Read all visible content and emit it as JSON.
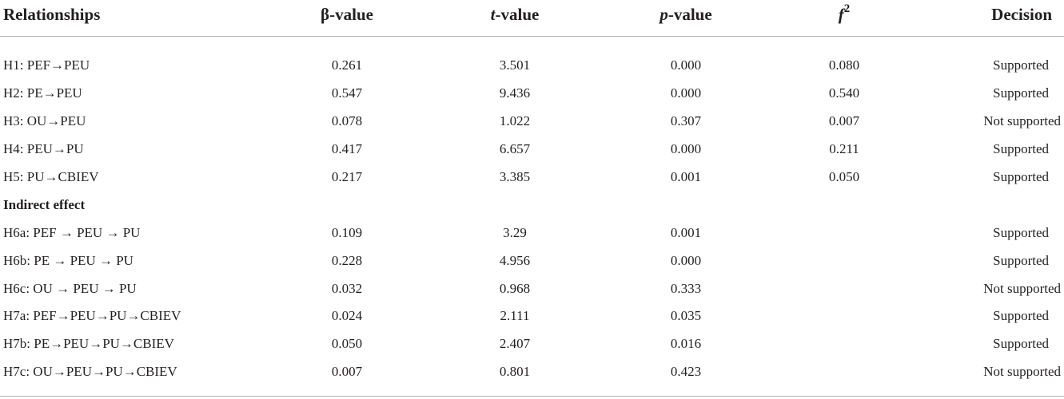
{
  "table": {
    "headers": {
      "relationships": "Relationships",
      "beta": "β-value",
      "t_prefix": "t",
      "t_suffix": "-value",
      "p_prefix": "p",
      "p_suffix": "-value",
      "f_base": "f",
      "f_sup": "2",
      "decision": "Decision"
    },
    "direct_rows": [
      {
        "rel": "H1: PEF→PEU",
        "beta": "0.261",
        "t": "3.501",
        "p": "0.000",
        "f2": "0.080",
        "decision": "Supported"
      },
      {
        "rel": "H2: PE→PEU",
        "beta": "0.547",
        "t": "9.436",
        "p": "0.000",
        "f2": "0.540",
        "decision": "Supported"
      },
      {
        "rel": "H3: OU→PEU",
        "beta": "0.078",
        "t": "1.022",
        "p": "0.307",
        "f2": "0.007",
        "decision": "Not supported"
      },
      {
        "rel": "H4: PEU→PU",
        "beta": "0.417",
        "t": "6.657",
        "p": "0.000",
        "f2": "0.211",
        "decision": "Supported"
      },
      {
        "rel": "H5: PU→CBIEV",
        "beta": "0.217",
        "t": "3.385",
        "p": "0.001",
        "f2": "0.050",
        "decision": "Supported"
      }
    ],
    "section_label": "Indirect effect",
    "indirect_rows": [
      {
        "rel": "H6a: PEF → PEU → PU",
        "beta": "0.109",
        "t": "3.29",
        "p": "0.001",
        "f2": "",
        "decision": "Supported"
      },
      {
        "rel": "H6b: PE → PEU → PU",
        "beta": "0.228",
        "t": "4.956",
        "p": "0.000",
        "f2": "",
        "decision": "Supported"
      },
      {
        "rel": "H6c: OU → PEU → PU",
        "beta": "0.032",
        "t": "0.968",
        "p": "0.333",
        "f2": "",
        "decision": "Not supported"
      },
      {
        "rel": "H7a: PEF→PEU→PU→CBIEV",
        "beta": "0.024",
        "t": "2.111",
        "p": "0.035",
        "f2": "",
        "decision": "Supported"
      },
      {
        "rel": "H7b: PE→PEU→PU→CBIEV",
        "beta": "0.050",
        "t": "2.407",
        "p": "0.016",
        "f2": "",
        "decision": "Supported"
      },
      {
        "rel": "H7c: OU→PEU→PU→CBIEV",
        "beta": "0.007",
        "t": "0.801",
        "p": "0.423",
        "f2": "",
        "decision": "Not supported"
      }
    ]
  }
}
